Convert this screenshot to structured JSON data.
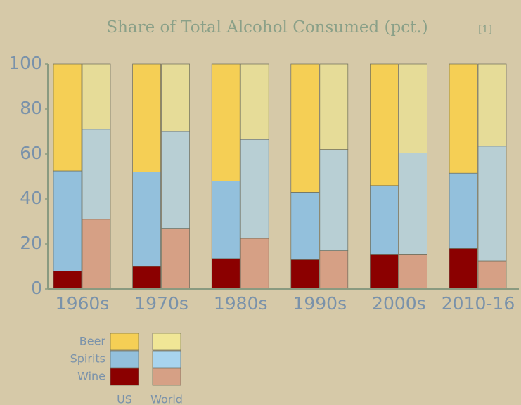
{
  "chart_data": {
    "type": "grouped-stacked-bar",
    "title": "Share of Total Alcohol Consumed (pct.)",
    "footnote": "[1]",
    "categories": [
      "1960s",
      "1970s",
      "1980s",
      "1990s",
      "2000s",
      "2010-16"
    ],
    "groups": [
      "US",
      "World"
    ],
    "series": [
      {
        "name": "Wine",
        "colors": [
          "#8b0000",
          "#d6a085"
        ],
        "legend_colors": [
          "#8b0000",
          "#d6a085"
        ],
        "values": [
          [
            8,
            31
          ],
          [
            10,
            27
          ],
          [
            13.5,
            22.5
          ],
          [
            13,
            17
          ],
          [
            15.5,
            15.5
          ],
          [
            18,
            12.5
          ]
        ]
      },
      {
        "name": "Spirits",
        "colors": [
          "#93c0dc",
          "#b8cfd4"
        ],
        "legend_colors": [
          "#93c0dc",
          "#a8d4ee"
        ],
        "values": [
          [
            44.5,
            40
          ],
          [
            42,
            43
          ],
          [
            34.5,
            44
          ],
          [
            30,
            45
          ],
          [
            30.5,
            45
          ],
          [
            33.5,
            51
          ]
        ]
      },
      {
        "name": "Beer",
        "colors": [
          "#f5cf55",
          "#e6dc98"
        ],
        "legend_colors": [
          "#f5cf55",
          "#f0e696"
        ],
        "values": [
          [
            47.5,
            29
          ],
          [
            48,
            30
          ],
          [
            52,
            33.5
          ],
          [
            57,
            38
          ],
          [
            54,
            39.5
          ],
          [
            48.5,
            36.5
          ]
        ]
      }
    ],
    "ylim": [
      0,
      100
    ],
    "yticks": [
      0,
      20,
      40,
      60,
      80,
      100
    ]
  }
}
